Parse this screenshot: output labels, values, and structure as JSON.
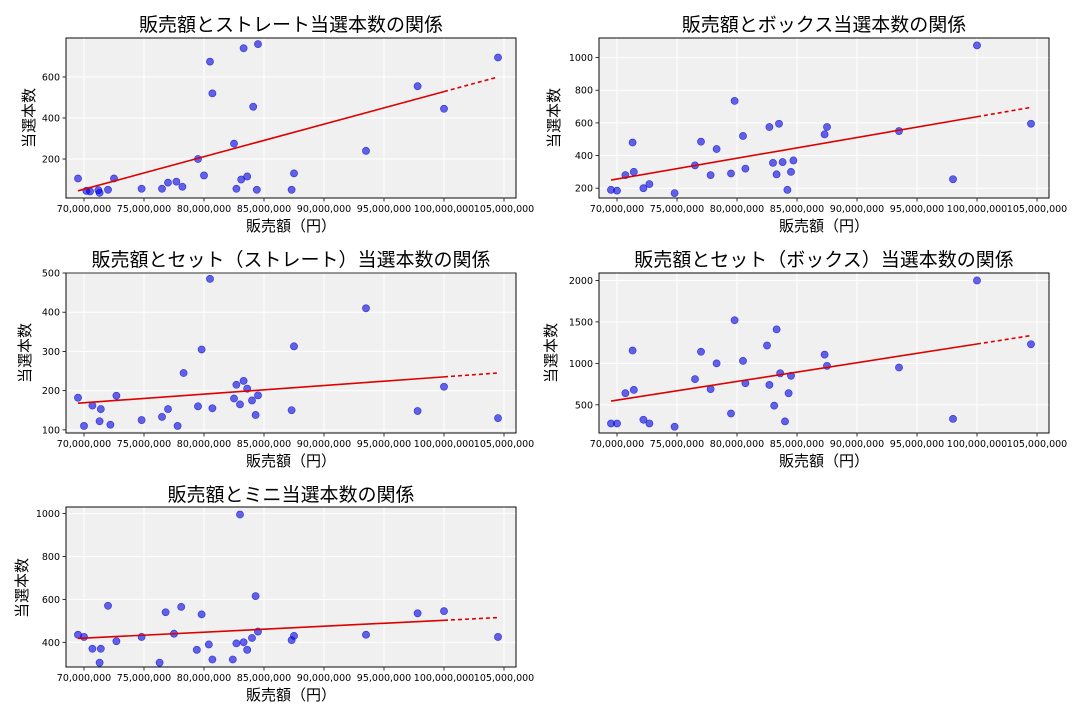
{
  "chart_data": [
    {
      "type": "scatter",
      "title": "販売額とストレート当選本数の関係",
      "xlabel": "販売額（円）",
      "ylabel": "当選本数",
      "xlim": [
        68500000,
        106000000
      ],
      "ylim": [
        10,
        790
      ],
      "xticks": [
        70000000,
        75000000,
        80000000,
        85000000,
        90000000,
        95000000,
        100000000,
        105000000
      ],
      "xtick_labels": [
        "70,000,000",
        "75,000,000",
        "80,000,000",
        "85,000,000",
        "90,000,000",
        "95,000,000",
        "100,000,000",
        "105,000,000"
      ],
      "yticks": [
        200,
        400,
        600
      ],
      "ytick_labels": [
        "200",
        "400",
        "600"
      ],
      "grid": true,
      "point_color": "#0000dd",
      "trend_color": "#dd0000",
      "trend": {
        "x0": 69500000,
        "y0": 45,
        "x1": 104500000,
        "y1": 600,
        "dashed_from": 100000000
      },
      "points": [
        [
          69500000,
          105
        ],
        [
          70200000,
          45
        ],
        [
          70500000,
          42
        ],
        [
          71200000,
          48
        ],
        [
          71300000,
          35
        ],
        [
          72000000,
          50
        ],
        [
          72500000,
          105
        ],
        [
          74800000,
          55
        ],
        [
          76500000,
          55
        ],
        [
          77000000,
          85
        ],
        [
          77700000,
          90
        ],
        [
          78200000,
          65
        ],
        [
          79500000,
          200
        ],
        [
          80000000,
          120
        ],
        [
          80500000,
          675
        ],
        [
          80700000,
          520
        ],
        [
          82500000,
          275
        ],
        [
          82700000,
          55
        ],
        [
          83100000,
          100
        ],
        [
          83300000,
          740
        ],
        [
          83600000,
          115
        ],
        [
          84100000,
          455
        ],
        [
          84400000,
          50
        ],
        [
          84500000,
          760
        ],
        [
          87300000,
          50
        ],
        [
          87500000,
          130
        ],
        [
          93500000,
          240
        ],
        [
          97800000,
          555
        ],
        [
          100000000,
          445
        ],
        [
          104500000,
          695
        ]
      ]
    },
    {
      "type": "scatter",
      "title": "販売額とボックス当選本数の関係",
      "xlabel": "販売額（円）",
      "ylabel": "当選本数",
      "xlim": [
        68500000,
        106000000
      ],
      "ylim": [
        140,
        1120
      ],
      "xticks": [
        70000000,
        75000000,
        80000000,
        85000000,
        90000000,
        95000000,
        100000000,
        105000000
      ],
      "xtick_labels": [
        "70,000,000",
        "75,000,000",
        "80,000,000",
        "85,000,000",
        "90,000,000",
        "95,000,000",
        "100,000,000",
        "105,000,000"
      ],
      "yticks": [
        200,
        400,
        600,
        800,
        1000
      ],
      "ytick_labels": [
        "200",
        "400",
        "600",
        "800",
        "1000"
      ],
      "grid": true,
      "point_color": "#0000dd",
      "trend_color": "#dd0000",
      "trend": {
        "x0": 69500000,
        "y0": 250,
        "x1": 104500000,
        "y1": 695,
        "dashed_from": 100000000
      },
      "points": [
        [
          69500000,
          190
        ],
        [
          70000000,
          185
        ],
        [
          70700000,
          280
        ],
        [
          71300000,
          480
        ],
        [
          71400000,
          300
        ],
        [
          72200000,
          200
        ],
        [
          72700000,
          225
        ],
        [
          74800000,
          170
        ],
        [
          76500000,
          340
        ],
        [
          77000000,
          485
        ],
        [
          77800000,
          280
        ],
        [
          78300000,
          440
        ],
        [
          79500000,
          290
        ],
        [
          79800000,
          735
        ],
        [
          80500000,
          520
        ],
        [
          80700000,
          320
        ],
        [
          82700000,
          575
        ],
        [
          83000000,
          355
        ],
        [
          83300000,
          285
        ],
        [
          83500000,
          595
        ],
        [
          83800000,
          360
        ],
        [
          84200000,
          190
        ],
        [
          84500000,
          300
        ],
        [
          84700000,
          370
        ],
        [
          87300000,
          530
        ],
        [
          87500000,
          575
        ],
        [
          93500000,
          550
        ],
        [
          98000000,
          255
        ],
        [
          100000000,
          1075
        ],
        [
          104500000,
          595
        ]
      ]
    },
    {
      "type": "scatter",
      "title": "販売額とセット（ストレート）当選本数の関係",
      "xlabel": "販売額（円）",
      "ylabel": "当選本数",
      "xlim": [
        68500000,
        106000000
      ],
      "ylim": [
        92,
        500
      ],
      "xticks": [
        70000000,
        75000000,
        80000000,
        85000000,
        90000000,
        95000000,
        100000000,
        105000000
      ],
      "xtick_labels": [
        "70,000,000",
        "75,000,000",
        "80,000,000",
        "85,000,000",
        "90,000,000",
        "95,000,000",
        "100,000,000",
        "105,000,000"
      ],
      "yticks": [
        100,
        200,
        300,
        400,
        500
      ],
      "ytick_labels": [
        "100",
        "200",
        "300",
        "400",
        "500"
      ],
      "grid": true,
      "point_color": "#0000dd",
      "trend_color": "#dd0000",
      "trend": {
        "x0": 69500000,
        "y0": 168,
        "x1": 104500000,
        "y1": 245,
        "dashed_from": 100000000
      },
      "points": [
        [
          69500000,
          182
        ],
        [
          70000000,
          110
        ],
        [
          70700000,
          162
        ],
        [
          71300000,
          122
        ],
        [
          71400000,
          153
        ],
        [
          72200000,
          113
        ],
        [
          72700000,
          187
        ],
        [
          74800000,
          125
        ],
        [
          76500000,
          133
        ],
        [
          77000000,
          153
        ],
        [
          77800000,
          110
        ],
        [
          78300000,
          245
        ],
        [
          79500000,
          160
        ],
        [
          79800000,
          305
        ],
        [
          80500000,
          485
        ],
        [
          80700000,
          155
        ],
        [
          82500000,
          180
        ],
        [
          82700000,
          215
        ],
        [
          83000000,
          165
        ],
        [
          83300000,
          225
        ],
        [
          83600000,
          205
        ],
        [
          84000000,
          175
        ],
        [
          84300000,
          138
        ],
        [
          84500000,
          188
        ],
        [
          87300000,
          150
        ],
        [
          87500000,
          313
        ],
        [
          93500000,
          410
        ],
        [
          97800000,
          148
        ],
        [
          100000000,
          210
        ],
        [
          104500000,
          130
        ]
      ]
    },
    {
      "type": "scatter",
      "title": "販売額とセット（ボックス）当選本数の関係",
      "xlabel": "販売額（円）",
      "ylabel": "当選本数",
      "xlim": [
        68500000,
        106000000
      ],
      "ylim": [
        160,
        2090
      ],
      "xticks": [
        70000000,
        75000000,
        80000000,
        85000000,
        90000000,
        95000000,
        100000000,
        105000000
      ],
      "xtick_labels": [
        "70,000,000",
        "75,000,000",
        "80,000,000",
        "85,000,000",
        "90,000,000",
        "95,000,000",
        "100,000,000",
        "105,000,000"
      ],
      "yticks": [
        500,
        1000,
        1500,
        2000
      ],
      "ytick_labels": [
        "500",
        "1000",
        "1500",
        "2000"
      ],
      "grid": true,
      "point_color": "#0000dd",
      "trend_color": "#dd0000",
      "trend": {
        "x0": 69500000,
        "y0": 545,
        "x1": 104500000,
        "y1": 1335,
        "dashed_from": 100000000
      },
      "points": [
        [
          69500000,
          275
        ],
        [
          70000000,
          275
        ],
        [
          70700000,
          640
        ],
        [
          71300000,
          1155
        ],
        [
          71400000,
          680
        ],
        [
          72200000,
          320
        ],
        [
          72700000,
          275
        ],
        [
          74800000,
          235
        ],
        [
          76500000,
          810
        ],
        [
          77000000,
          1140
        ],
        [
          77800000,
          690
        ],
        [
          78300000,
          1000
        ],
        [
          79500000,
          395
        ],
        [
          79800000,
          1520
        ],
        [
          80500000,
          1030
        ],
        [
          80700000,
          760
        ],
        [
          82500000,
          1215
        ],
        [
          82700000,
          740
        ],
        [
          83100000,
          490
        ],
        [
          83300000,
          1410
        ],
        [
          83600000,
          880
        ],
        [
          84000000,
          300
        ],
        [
          84300000,
          640
        ],
        [
          84500000,
          850
        ],
        [
          87300000,
          1105
        ],
        [
          87500000,
          970
        ],
        [
          93500000,
          950
        ],
        [
          98000000,
          330
        ],
        [
          100000000,
          2000
        ],
        [
          104500000,
          1230
        ]
      ]
    },
    {
      "type": "scatter",
      "title": "販売額とミニ当選本数の関係",
      "xlabel": "販売額（円）",
      "ylabel": "当選本数",
      "xlim": [
        68500000,
        106000000
      ],
      "ylim": [
        285,
        1030
      ],
      "xticks": [
        70000000,
        75000000,
        80000000,
        85000000,
        90000000,
        95000000,
        100000000,
        105000000
      ],
      "xtick_labels": [
        "70,000,000",
        "75,000,000",
        "80,000,000",
        "85,000,000",
        "90,000,000",
        "95,000,000",
        "100,000,000",
        "105,000,000"
      ],
      "yticks": [
        400,
        600,
        800,
        1000
      ],
      "ytick_labels": [
        "400",
        "600",
        "800",
        "1000"
      ],
      "grid": true,
      "point_color": "#0000dd",
      "trend_color": "#dd0000",
      "trend": {
        "x0": 69500000,
        "y0": 418,
        "x1": 104500000,
        "y1": 515,
        "dashed_from": 100000000
      },
      "points": [
        [
          69500000,
          435
        ],
        [
          70000000,
          425
        ],
        [
          70700000,
          370
        ],
        [
          71300000,
          305
        ],
        [
          71400000,
          370
        ],
        [
          72000000,
          570
        ],
        [
          72700000,
          405
        ],
        [
          74800000,
          425
        ],
        [
          76300000,
          305
        ],
        [
          76800000,
          540
        ],
        [
          77500000,
          440
        ],
        [
          78100000,
          565
        ],
        [
          79400000,
          365
        ],
        [
          79800000,
          530
        ],
        [
          80400000,
          390
        ],
        [
          80700000,
          320
        ],
        [
          82400000,
          320
        ],
        [
          82700000,
          395
        ],
        [
          83000000,
          995
        ],
        [
          83300000,
          400
        ],
        [
          83600000,
          365
        ],
        [
          84000000,
          420
        ],
        [
          84300000,
          615
        ],
        [
          84500000,
          450
        ],
        [
          87300000,
          410
        ],
        [
          87500000,
          430
        ],
        [
          93500000,
          435
        ],
        [
          97800000,
          535
        ],
        [
          100000000,
          545
        ],
        [
          104500000,
          425
        ]
      ]
    }
  ]
}
